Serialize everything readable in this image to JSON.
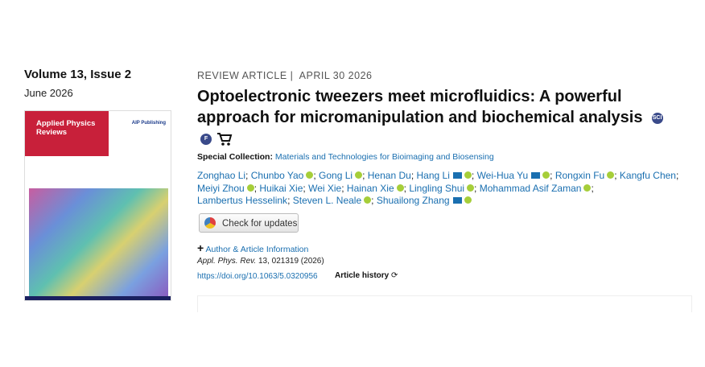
{
  "issue": {
    "volume": "Volume 13, Issue 2",
    "date": "June 2026",
    "cover": {
      "journal": "Applied Physics Reviews",
      "publisher": "AIP Publishing"
    }
  },
  "article": {
    "type": "REVIEW ARTICLE |",
    "date": "APRIL 30 2026",
    "title": "Optoelectronic tweezers meet microfluidics: A powerful approach for micromanipulation and biochemical analysis",
    "badges": [
      "SCI",
      "F"
    ],
    "special_collection": {
      "label": "Special Collection:",
      "link": "Materials and Technologies for Bioimaging and Biosensing"
    },
    "author_separator": ";",
    "authors": [
      {
        "name": "Zonghao Li",
        "email": false,
        "orcid": false
      },
      {
        "name": "Chunbo Yao",
        "email": false,
        "orcid": true
      },
      {
        "name": "Gong Li",
        "email": false,
        "orcid": true
      },
      {
        "name": "Henan Du",
        "email": false,
        "orcid": false
      },
      {
        "name": "Hang Li",
        "email": true,
        "orcid": true
      },
      {
        "name": "Wei-Hua Yu",
        "email": true,
        "orcid": true
      },
      {
        "name": "Rongxin Fu",
        "email": false,
        "orcid": true
      },
      {
        "name": "Kangfu Chen",
        "email": false,
        "orcid": false
      },
      {
        "name": "Meiyi Zhou",
        "email": false,
        "orcid": true
      },
      {
        "name": "Huikai Xie",
        "email": false,
        "orcid": false
      },
      {
        "name": "Wei Xie",
        "email": false,
        "orcid": false
      },
      {
        "name": "Hainan Xie",
        "email": false,
        "orcid": true
      },
      {
        "name": "Lingling Shui",
        "email": false,
        "orcid": true
      },
      {
        "name": "Mohammad Asif Zaman",
        "email": false,
        "orcid": true
      },
      {
        "name": "Lambertus Hesselink",
        "email": false,
        "orcid": false
      },
      {
        "name": "Steven L. Neale",
        "email": false,
        "orcid": true
      },
      {
        "name": "Shuailong Zhang",
        "email": true,
        "orcid": true
      }
    ],
    "check_updates": "Check for updates",
    "author_info": "Author & Article Information",
    "citation": {
      "journal": "Appl. Phys. Rev.",
      "details": "13, 021319 (2026)"
    },
    "doi": "https://doi.org/10.1063/5.0320956",
    "history": "Article history"
  }
}
